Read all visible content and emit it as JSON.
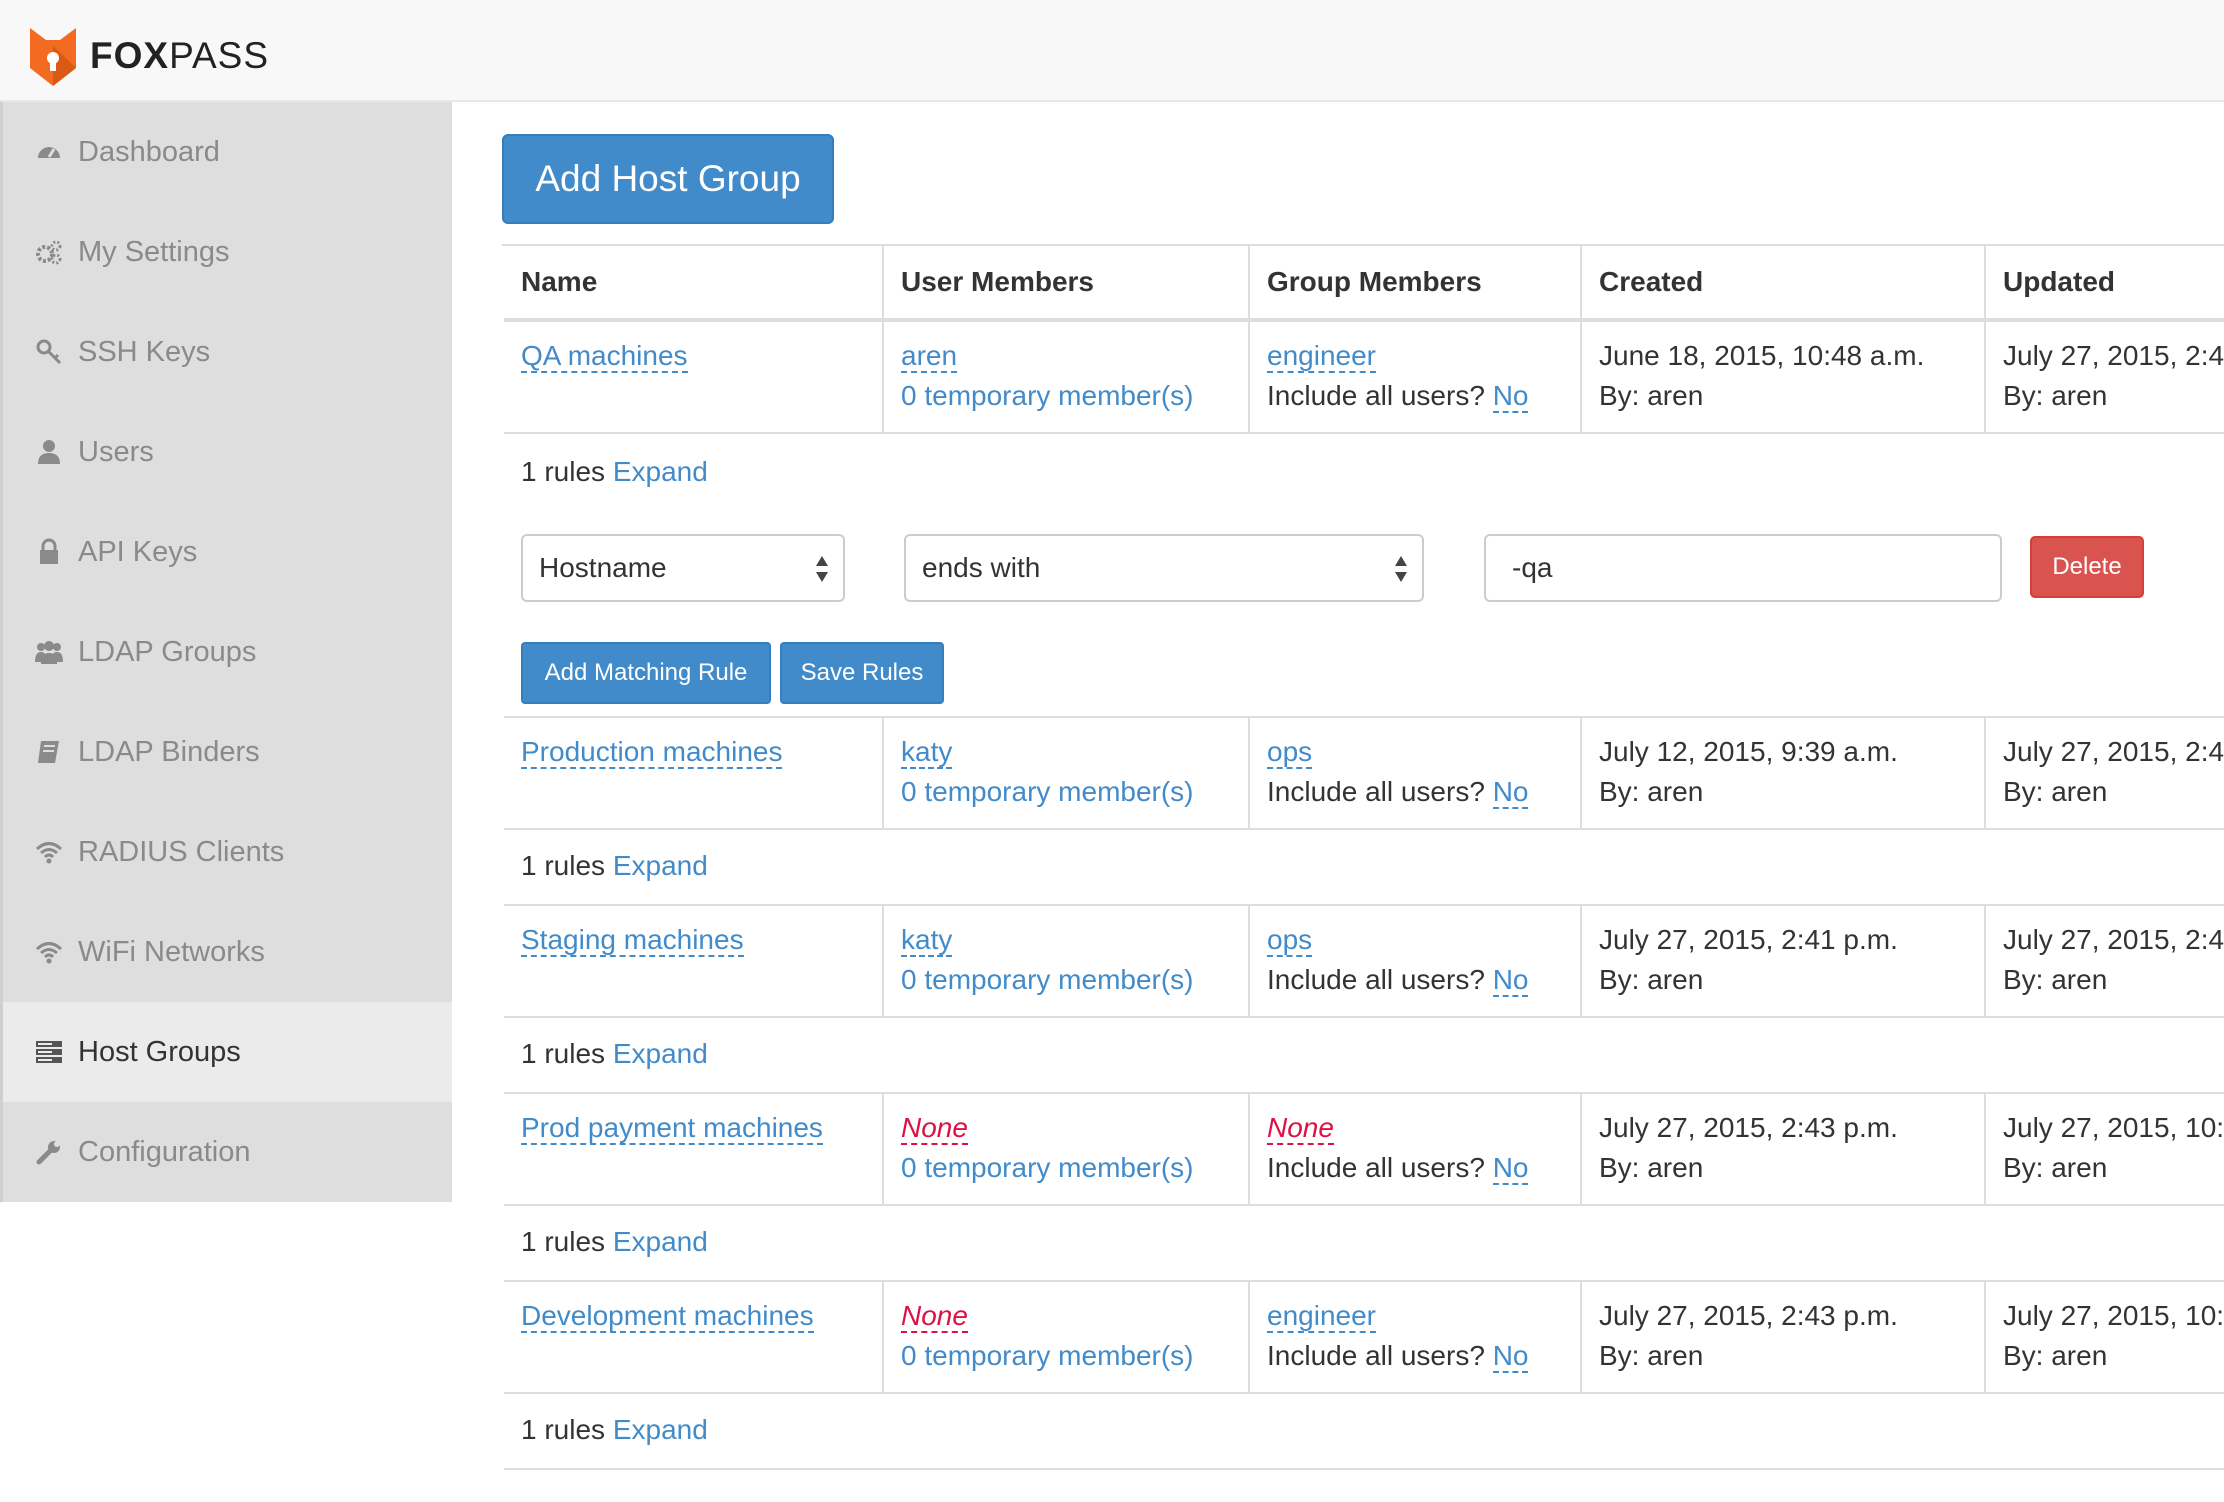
{
  "app": {
    "brand_bold": "FOX",
    "brand_rest": "PASS"
  },
  "sidebar": {
    "items": [
      {
        "label": "Dashboard",
        "icon": "dashboard-icon"
      },
      {
        "label": "My Settings",
        "icon": "cogs-icon"
      },
      {
        "label": "SSH Keys",
        "icon": "key-icon"
      },
      {
        "label": "Users",
        "icon": "user-icon"
      },
      {
        "label": "API Keys",
        "icon": "lock-icon"
      },
      {
        "label": "LDAP Groups",
        "icon": "users-icon"
      },
      {
        "label": "LDAP Binders",
        "icon": "book-icon"
      },
      {
        "label": "RADIUS Clients",
        "icon": "wifi-icon"
      },
      {
        "label": "WiFi Networks",
        "icon": "wifi-icon"
      },
      {
        "label": "Host Groups",
        "icon": "server-icon",
        "active": true
      },
      {
        "label": "Configuration",
        "icon": "wrench-icon"
      }
    ]
  },
  "main": {
    "add_button": "Add Host Group",
    "columns": [
      "Name",
      "User Members",
      "Group Members",
      "Created",
      "Updated"
    ],
    "include_all_label": "Include all users?",
    "rules_suffix": "rules",
    "expand_label": "Expand",
    "rows": [
      {
        "name": "QA machines",
        "user": "aren",
        "temp": "0 temporary member(s)",
        "group": "engineer",
        "include": "No",
        "created": "June 18, 2015, 10:48 a.m.",
        "created_by": "By: aren",
        "updated": "July 27, 2015, 2:4",
        "updated_by": "By: aren",
        "rules_count": "1"
      },
      {
        "name": "Production machines",
        "user": "katy",
        "temp": "0 temporary member(s)",
        "group": "ops",
        "include": "No",
        "created": "July 12, 2015, 9:39 a.m.",
        "created_by": "By: aren",
        "updated": "July 27, 2015, 2:4",
        "updated_by": "By: aren",
        "rules_count": "1"
      },
      {
        "name": "Staging machines",
        "user": "katy",
        "temp": "0 temporary member(s)",
        "group": "ops",
        "include": "No",
        "created": "July 27, 2015, 2:41 p.m.",
        "created_by": "By: aren",
        "updated": "July 27, 2015, 2:4",
        "updated_by": "By: aren",
        "rules_count": "1"
      },
      {
        "name": "Prod payment machines",
        "user": "None",
        "temp": "0 temporary member(s)",
        "group": "None",
        "include": "No",
        "created": "July 27, 2015, 2:43 p.m.",
        "created_by": "By: aren",
        "updated": "July 27, 2015, 10:",
        "updated_by": "By: aren",
        "rules_count": "1"
      },
      {
        "name": "Development machines",
        "user": "None",
        "temp": "0 temporary member(s)",
        "group": "engineer",
        "include": "No",
        "created": "July 27, 2015, 2:43 p.m.",
        "created_by": "By: aren",
        "updated": "July 27, 2015, 10:",
        "updated_by": "By: aren",
        "rules_count": "1"
      }
    ],
    "rule_editor": {
      "field": "Hostname",
      "operator": "ends with",
      "value": "-qa",
      "delete_label": "Delete",
      "add_rule_label": "Add Matching Rule",
      "save_label": "Save Rules"
    }
  },
  "colors": {
    "link": "#428bca",
    "danger": "#d9534f",
    "none_text": "#dd1144",
    "sidebar_bg": "#dedede",
    "brand_orange": "#f26b21"
  }
}
